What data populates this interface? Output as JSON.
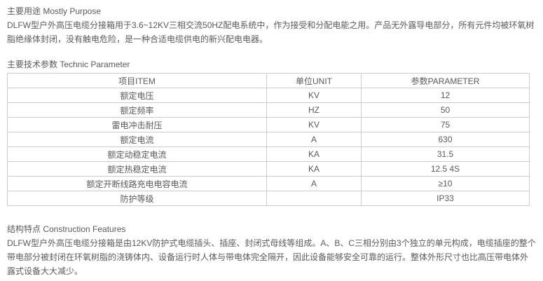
{
  "purpose": {
    "heading": "主要用途 Mostly Purpose",
    "body": "DLFW型户外高压电缆分接箱用于3.6~12KV三相交流50HZ配电系统中，作为接受和分配电能之用。产品无外露导电部分，所有元件均被环氧树脂绝缘体封闭，没有触电危险，是一种合适电缆供电的新兴配电电器。"
  },
  "parameters": {
    "heading": "主要技术参数 Technic Parameter",
    "table": {
      "headers": [
        "项目ITEM",
        "单位UNIT",
        "参数PARAMETER"
      ],
      "rows": [
        [
          "额定电压",
          "KV",
          "12"
        ],
        [
          "额定频率",
          "HZ",
          "50"
        ],
        [
          "雷电冲击耐压",
          "KV",
          "75"
        ],
        [
          "额定电流",
          "A",
          "630"
        ],
        [
          "额定动稳定电流",
          "KA",
          "31.5"
        ],
        [
          "额定热稳定电流",
          "KA",
          "12.5 4S"
        ],
        [
          "额定开断线路充电电容电流",
          "A",
          "≥10"
        ],
        [
          "防护等级",
          "",
          "IP33"
        ]
      ]
    }
  },
  "construction": {
    "heading": "结构特点 Construction Features",
    "body": "DLFW型户外高压电缆分接箱是由12KV防护式电缆插头、插座、封闭式母线等组成。A、B、C三相分别由3个独立的单元构成，电缆插座的整个带电部分被封闭在环氧树脂的浇铸体内、设备运行时人体与带电体完全隔开，因此设备能够安全可靠的运行。整体外形尺寸也比高压带电体外露式设备大大减少。"
  },
  "colors": {
    "text": "#5a5a5a",
    "table_border": "#cccccc",
    "background": "#ffffff"
  }
}
